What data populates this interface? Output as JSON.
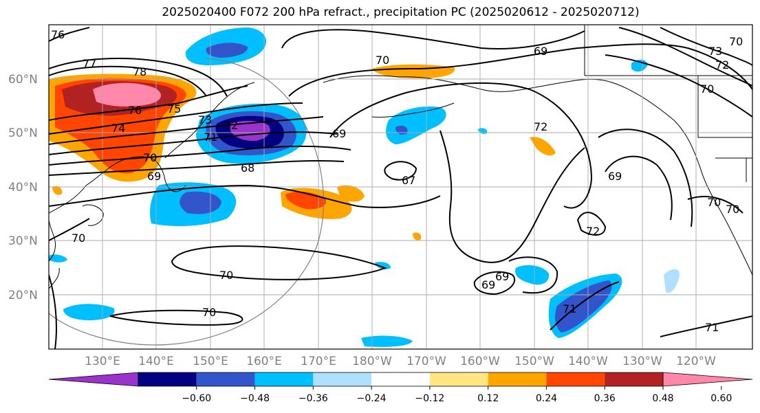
{
  "title": "2025020400 F072 200 hPa refract., precipitation PC (2025020612 - 2025020712)",
  "lat_labels": [
    "60°N",
    "50°N",
    "40°N",
    "30°N",
    "20°N"
  ],
  "lon_labels": [
    "130°E",
    "140°E",
    "150°E",
    "160°E",
    "170°E",
    "180°W",
    "170°W",
    "160°W",
    "150°W",
    "140°W",
    "130°W",
    "120°W"
  ],
  "contour_labels": [
    "76",
    "77",
    "78",
    "76",
    "75",
    "74",
    "73",
    "72",
    "71",
    "70",
    "69",
    "68",
    "69",
    "70",
    "67",
    "72",
    "69",
    "70",
    "70",
    "72",
    "70",
    "70",
    "69",
    "69",
    "71",
    "71",
    "69",
    "70",
    "70",
    "73",
    "72",
    "70"
  ],
  "colorbar": {
    "ticks": [
      "−0.60",
      "−0.48",
      "−0.36",
      "−0.24",
      "−0.12",
      "0.12",
      "0.24",
      "0.36",
      "0.48",
      "0.60"
    ],
    "colors": [
      "#9933cc",
      "#000080",
      "#3355cc",
      "#00bfff",
      "#b0e0ff",
      "#ffffff",
      "#ffe680",
      "#ffa500",
      "#ff4500",
      "#b22222",
      "#ff88aa"
    ]
  }
}
